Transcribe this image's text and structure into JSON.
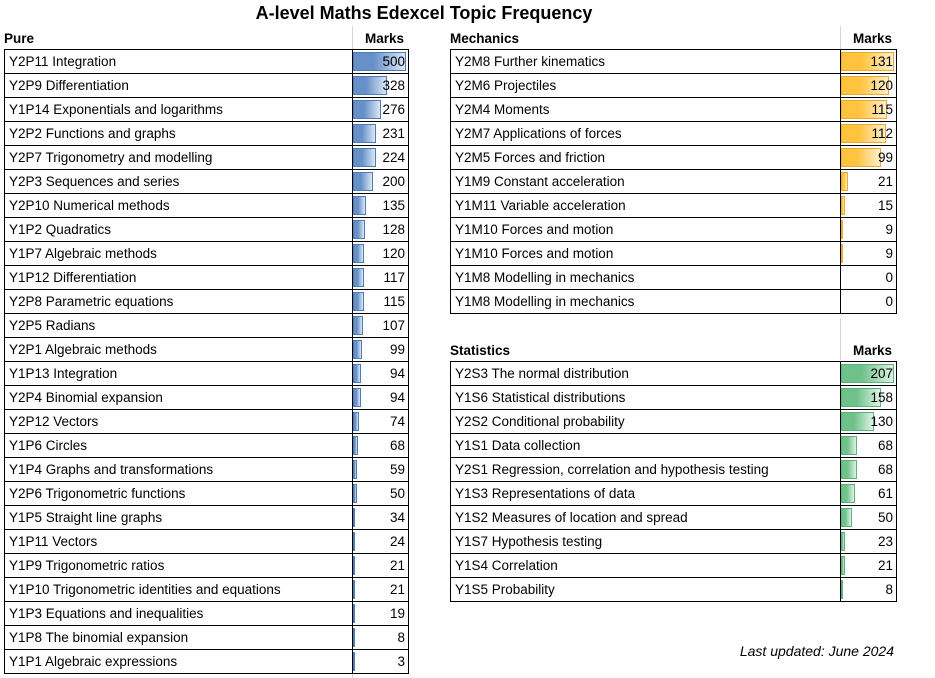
{
  "footer": "Last updated: June 2024",
  "chart_data": {
    "type": "table",
    "title": "A-level Maths Edexcel Topic Frequency",
    "marks_header": "Marks",
    "layout_hint": "three topic/marks tables with in-cell gradient data bars; bar length = marks / section scale_max",
    "sections": [
      {
        "name": "Pure",
        "scale_max": 500,
        "bar_color": "#6690C8",
        "bar_fade": "#DCE6F4",
        "bar_border": "#4E7CB5",
        "rows": [
          {
            "topic": "Y2P11 Integration",
            "marks": 500
          },
          {
            "topic": "Y2P9 Differentiation",
            "marks": 328
          },
          {
            "topic": "Y1P14 Exponentials and logarithms",
            "marks": 276
          },
          {
            "topic": "Y2P2 Functions and graphs",
            "marks": 231
          },
          {
            "topic": "Y2P7 Trigonometry and modelling",
            "marks": 224
          },
          {
            "topic": "Y2P3 Sequences and series",
            "marks": 200
          },
          {
            "topic": "Y2P10 Numerical methods",
            "marks": 135
          },
          {
            "topic": "Y1P2 Quadratics",
            "marks": 128
          },
          {
            "topic": "Y1P7 Algebraic methods",
            "marks": 120
          },
          {
            "topic": "Y1P12 Differentiation",
            "marks": 117
          },
          {
            "topic": "Y2P8 Parametric equations",
            "marks": 115
          },
          {
            "topic": "Y2P5 Radians",
            "marks": 107
          },
          {
            "topic": "Y2P1 Algebraic methods",
            "marks": 99
          },
          {
            "topic": "Y1P13 Integration",
            "marks": 94
          },
          {
            "topic": "Y2P4 Binomial expansion",
            "marks": 94
          },
          {
            "topic": "Y2P12 Vectors",
            "marks": 74
          },
          {
            "topic": "Y1P6 Circles",
            "marks": 68
          },
          {
            "topic": "Y1P4 Graphs and transformations",
            "marks": 59
          },
          {
            "topic": "Y2P6 Trigonometric functions",
            "marks": 50
          },
          {
            "topic": "Y1P5 Straight line graphs",
            "marks": 34
          },
          {
            "topic": "Y1P11 Vectors",
            "marks": 24
          },
          {
            "topic": "Y1P9 Trigonometric ratios",
            "marks": 21
          },
          {
            "topic": "Y1P10 Trigonometric identities and equations",
            "marks": 21
          },
          {
            "topic": "Y1P3 Equations and inequalities",
            "marks": 19
          },
          {
            "topic": "Y1P8 The binomial expansion",
            "marks": 8
          },
          {
            "topic": "Y1P1 Algebraic expressions",
            "marks": 3
          }
        ]
      },
      {
        "name": "Mechanics",
        "scale_max": 131,
        "bar_color": "#FFC33D",
        "bar_fade": "#FFEFC9",
        "bar_border": "#E8A93A",
        "rows": [
          {
            "topic": "Y2M8 Further kinematics",
            "marks": 131
          },
          {
            "topic": "Y2M6 Projectiles",
            "marks": 120
          },
          {
            "topic": "Y2M4 Moments",
            "marks": 115
          },
          {
            "topic": "Y2M7 Applications of forces",
            "marks": 112
          },
          {
            "topic": "Y2M5 Forces and friction",
            "marks": 99
          },
          {
            "topic": "Y1M9 Constant acceleration",
            "marks": 21
          },
          {
            "topic": "Y1M11 Variable acceleration",
            "marks": 15
          },
          {
            "topic": "Y1M10 Forces and motion",
            "marks": 9
          },
          {
            "topic": "Y1M10 Forces and motion",
            "marks": 9
          },
          {
            "topic": "Y1M8 Modelling in mechanics",
            "marks": 0
          },
          {
            "topic": "Y1M8 Modelling in mechanics",
            "marks": 0
          }
        ]
      },
      {
        "name": "Statistics",
        "scale_max": 207,
        "bar_color": "#6EC189",
        "bar_fade": "#DEF2E4",
        "bar_border": "#5FB07C",
        "rows": [
          {
            "topic": "Y2S3 The normal distribution",
            "marks": 207
          },
          {
            "topic": "Y1S6 Statistical distributions",
            "marks": 158
          },
          {
            "topic": "Y2S2 Conditional probability",
            "marks": 130
          },
          {
            "topic": "Y1S1 Data collection",
            "marks": 68
          },
          {
            "topic": "Y2S1 Regression, correlation and hypothesis testing",
            "marks": 68
          },
          {
            "topic": "Y1S3 Representations of data",
            "marks": 61
          },
          {
            "topic": "Y1S2 Measures of location and spread",
            "marks": 50
          },
          {
            "topic": "Y1S7 Hypothesis testing",
            "marks": 23
          },
          {
            "topic": "Y1S4 Correlation",
            "marks": 21
          },
          {
            "topic": "Y1S5 Probability",
            "marks": 8
          }
        ]
      }
    ]
  }
}
